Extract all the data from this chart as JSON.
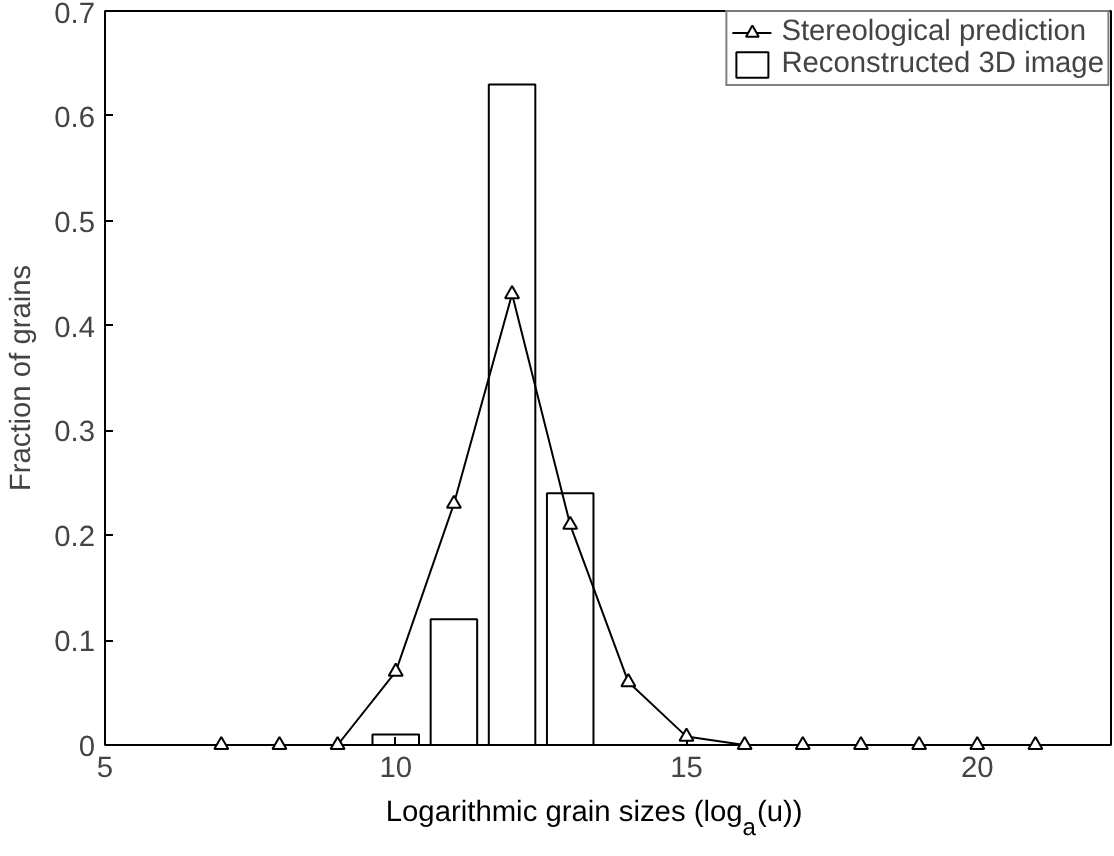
{
  "chart_data": {
    "type": "bar",
    "xlabel": "Logarithmic grain sizes (log$_{a}$(u))",
    "ylabel": "Fraction of grains",
    "xlim": [
      5,
      22.3
    ],
    "ylim": [
      0,
      0.7
    ],
    "xticks": [
      5,
      10,
      15,
      20
    ],
    "yticks": [
      0,
      0.1,
      0.2,
      0.3,
      0.4,
      0.5,
      0.6,
      0.7
    ],
    "grid": false,
    "legend": "top right",
    "series": [
      {
        "name": "Stereological prediction",
        "type": "line",
        "color": "#000000",
        "marker": "triangle",
        "x": [
          7,
          8,
          9,
          10,
          11,
          12,
          13,
          14,
          15,
          16,
          17,
          18,
          19,
          20,
          21
        ],
        "values": [
          0,
          0,
          0,
          0.07,
          0.23,
          0.43,
          0.21,
          0.06,
          0.008,
          0,
          0,
          0,
          0,
          0,
          0
        ]
      },
      {
        "name": "Reconstructed 3D image",
        "color": "#000000",
        "x": [
          10,
          11,
          12,
          13
        ],
        "values": [
          0.01,
          0.12,
          0.63,
          0.24
        ]
      }
    ]
  }
}
